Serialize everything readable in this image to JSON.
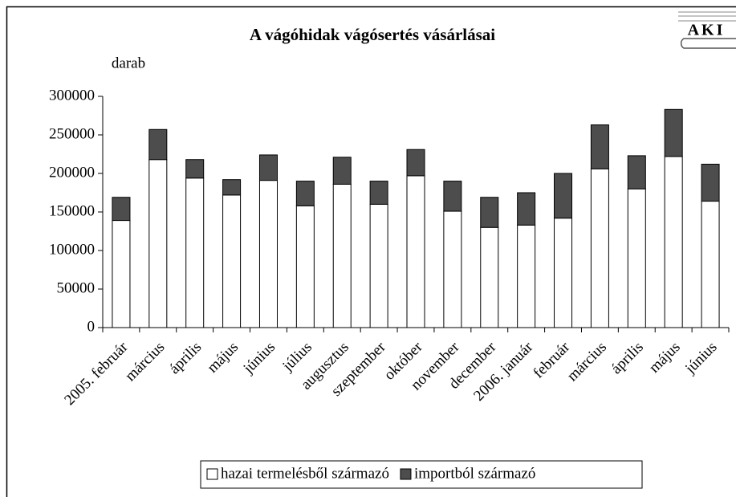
{
  "logo": "AKI",
  "chart_data": {
    "type": "stacked_bar",
    "title": "A vágóhidak vágósertés vásárlásai",
    "y_label": "darab",
    "categories": [
      "2005. február",
      "március",
      "április",
      "május",
      "június",
      "július",
      "augusztus",
      "szeptember",
      "október",
      "november",
      "december",
      "2006. január",
      "február",
      "március",
      "április",
      "május",
      "június"
    ],
    "series": [
      {
        "name": "hazai termelésből származó",
        "color": "#ffffff",
        "values": [
          139000,
          218000,
          194000,
          172000,
          191000,
          158000,
          186000,
          160000,
          197000,
          151000,
          130000,
          133000,
          142000,
          206000,
          180000,
          222000,
          164000
        ]
      },
      {
        "name": "importból származó",
        "color": "#4d4d4d",
        "values": [
          30000,
          39000,
          24000,
          20000,
          33000,
          32000,
          35000,
          30000,
          34000,
          39000,
          39000,
          42000,
          58000,
          57000,
          43000,
          61000,
          48000
        ]
      }
    ],
    "ylim": [
      0,
      300000
    ],
    "yticks": [
      0,
      50000,
      100000,
      150000,
      200000,
      250000,
      300000
    ],
    "legend": "bottom"
  }
}
